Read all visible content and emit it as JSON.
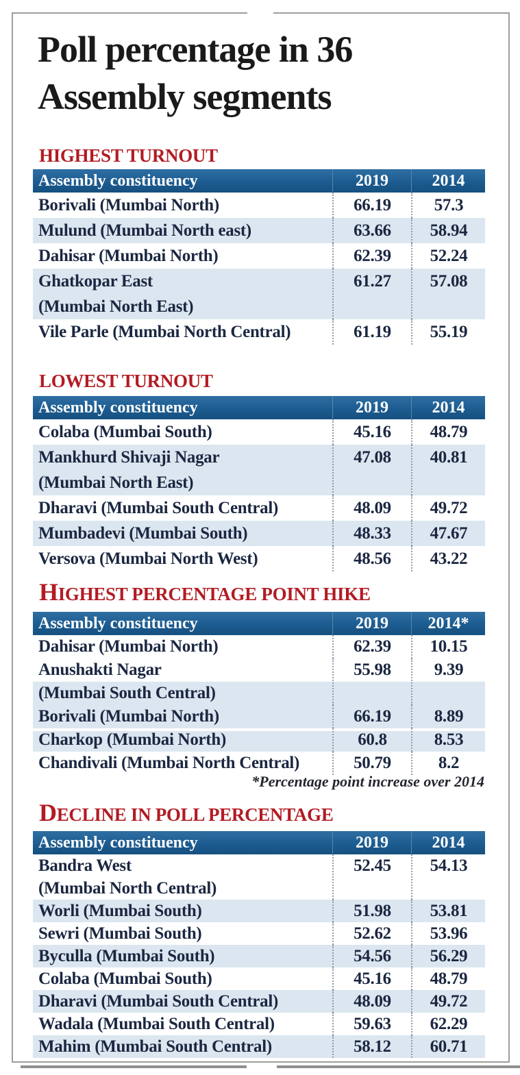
{
  "title": "Poll percentage in 36 Assembly segments",
  "footnote": "*Percentage point increase over 2014",
  "colors": {
    "heading_red": "#b21b23",
    "table_header_blue": "#1d5c90",
    "row_alt_blue": "#dbe6f0",
    "body_text_navy": "#1b2741",
    "frame_gray": "#9e9e9e"
  },
  "chart_data": [
    {
      "type": "table",
      "title": "HIGHEST TURNOUT",
      "columns": [
        "Assembly constituency",
        "2019",
        "2014"
      ],
      "rows": [
        [
          "Borivali (Mumbai North)",
          "66.19",
          "57.3"
        ],
        [
          "Mulund (Mumbai North east)",
          "63.66",
          "58.94"
        ],
        [
          "Dahisar (Mumbai North)",
          "62.39",
          "52.24"
        ],
        [
          "Ghatkopar East\n(Mumbai North East)",
          "61.27",
          "57.08"
        ],
        [
          "Vile Parle (Mumbai North Central)",
          "61.19",
          "55.19"
        ]
      ]
    },
    {
      "type": "table",
      "title": "LOWEST TURNOUT",
      "columns": [
        "Assembly constituency",
        "2019",
        "2014"
      ],
      "rows": [
        [
          "Colaba (Mumbai South)",
          "45.16",
          "48.79"
        ],
        [
          "Mankhurd Shivaji Nagar\n(Mumbai North East)",
          "47.08",
          "40.81"
        ],
        [
          "Dharavi (Mumbai South Central)",
          "48.09",
          "49.72"
        ],
        [
          "Mumbadevi (Mumbai South)",
          "48.33",
          "47.67"
        ],
        [
          "Versova (Mumbai North West)",
          "48.56",
          "43.22"
        ]
      ]
    },
    {
      "type": "table",
      "title": "HIGHEST PERCENTAGE POINT HIKE",
      "columns": [
        "Assembly constituency",
        "2019",
        "2014*"
      ],
      "rows": [
        [
          "Dahisar (Mumbai North)",
          "62.39",
          "10.15"
        ],
        [
          "Anushakti Nagar\n(Mumbai South Central)",
          "55.98",
          "9.39"
        ],
        [
          "Borivali (Mumbai North)",
          "66.19",
          "8.89"
        ],
        [
          "Charkop (Mumbai North)",
          "60.8",
          "8.53"
        ],
        [
          "Chandivali (Mumbai North Central)",
          "50.79",
          "8.2"
        ]
      ]
    },
    {
      "type": "table",
      "title": "DECLINE IN POLL PERCENTAGE",
      "columns": [
        "Assembly constituency",
        "2019",
        "2014"
      ],
      "rows": [
        [
          "Bandra West\n(Mumbai North Central)",
          "52.45",
          "54.13"
        ],
        [
          "Worli (Mumbai South)",
          "51.98",
          "53.81"
        ],
        [
          "Sewri (Mumbai South)",
          "52.62",
          "53.96"
        ],
        [
          "Byculla (Mumbai South)",
          "54.56",
          "56.29"
        ],
        [
          "Colaba (Mumbai South)",
          "45.16",
          "48.79"
        ],
        [
          "Dharavi (Mumbai South Central)",
          "48.09",
          "49.72"
        ],
        [
          "Wadala (Mumbai South Central)",
          "59.63",
          "62.29"
        ],
        [
          "Mahim (Mumbai South Central)",
          "58.12",
          "60.71"
        ]
      ]
    }
  ]
}
